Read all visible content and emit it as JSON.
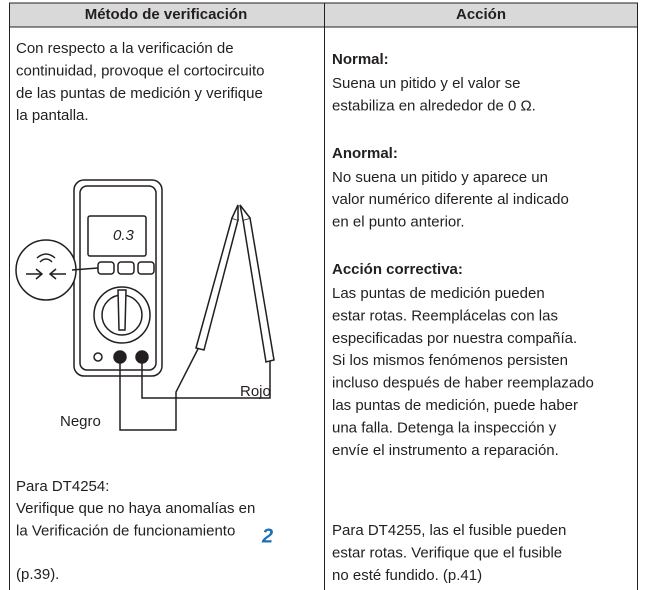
{
  "table": {
    "headers": [
      "Método de verificación",
      "Acción"
    ],
    "left": {
      "intro": [
        "Con respecto a la verificación de",
        "continuidad, provoque el cortocircuito",
        "de las puntas de medición y verifique",
        "la pantalla."
      ],
      "figure": {
        "display": "0.3",
        "red_label": "Rojo",
        "black_label": "Negro"
      },
      "note_title": "Para DT4254:",
      "note_lines": [
        "Verifique que no haya anomalías en",
        "la Verificación de funcionamiento"
      ],
      "note_ref": "2",
      "note_page": "(p.39)."
    },
    "right": {
      "sections": [
        {
          "title": "Normal:",
          "lines": [
            "Suena un pitido y el valor se",
            "estabiliza en alrededor de 0 Ω."
          ]
        },
        {
          "title": "Anormal:",
          "lines": [
            "No suena un pitido y aparece un",
            "valor numérico diferente al indicado",
            "en el punto anterior."
          ]
        },
        {
          "title": "Acción correctiva:",
          "lines": [
            "Las puntas de medición pueden",
            "estar rotas. Reemplácelas con las",
            "especificadas por nuestra compañía.",
            "Si los mismos fenómenos persisten",
            "incluso después de haber reemplazado",
            "las puntas de medición, puede haber",
            "una falla. Detenga la inspección y",
            "envíe el instrumento a reparación."
          ]
        }
      ],
      "note": [
        "Para DT4255, las el fusible pueden",
        "estar rotas. Verifique que el fusible",
        "no esté fundido. (p.41)"
      ]
    }
  }
}
